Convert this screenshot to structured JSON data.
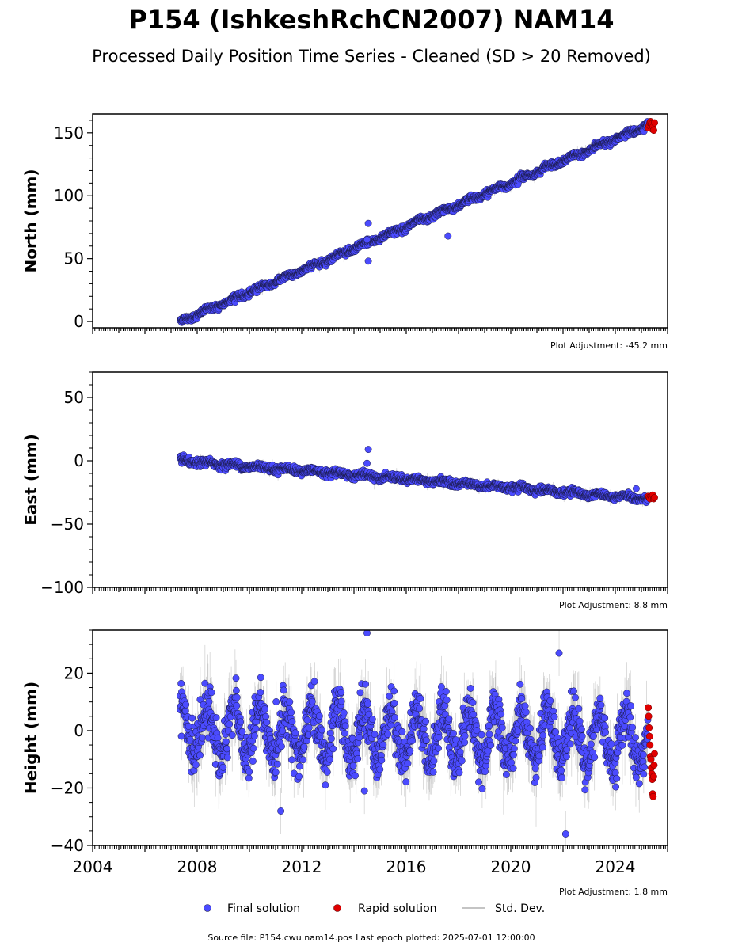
{
  "title": "P154 (IshkeshRchCN2007) NAM14",
  "subtitle": "Processed Daily Position Time Series - Cleaned (SD > 20 Removed)",
  "legend": {
    "final": "Final solution",
    "rapid": "Rapid solution",
    "std": "Std. Dev."
  },
  "footer": "Source file: P154.cwu.nam14.pos  Last epoch plotted: 2025-07-01 12:00:00",
  "colors": {
    "final": "#4b4bff",
    "final_edge": "#1a1a4a",
    "rapid": "#e00000",
    "std": "#b0b0b0"
  },
  "chart_data": [
    {
      "type": "scatter",
      "ylabel": "North (mm)",
      "adjustment": "Plot Adjustment: -45.2 mm",
      "xlim": [
        2004,
        2026
      ],
      "ylim": [
        -5,
        165
      ],
      "yticks": [
        0,
        50,
        100,
        150
      ],
      "yminor": 10,
      "xticks": [
        2004,
        2008,
        2012,
        2016,
        2020,
        2024
      ],
      "show_xticklabels": false,
      "final": {
        "start_year": 2007.35,
        "end_year": 2025.25,
        "trend_start": 0,
        "trend_end": 156,
        "annual_amplitude": 1.2,
        "noise": 1.2,
        "outliers": [
          [
            2014.55,
            78
          ],
          [
            2014.55,
            48
          ],
          [
            2014.5,
            65
          ],
          [
            2017.6,
            68
          ]
        ]
      },
      "rapid": {
        "start_year": 2025.26,
        "end_year": 2025.5,
        "values": [
          154,
          156,
          158,
          159,
          157,
          153,
          155,
          152,
          158
        ]
      }
    },
    {
      "type": "scatter",
      "ylabel": "East (mm)",
      "adjustment": "Plot Adjustment: 8.8 mm",
      "xlim": [
        2004,
        2026
      ],
      "ylim": [
        -100,
        70
      ],
      "yticks": [
        -100,
        -50,
        0,
        50
      ],
      "yminor": 10,
      "xticks": [
        2004,
        2008,
        2012,
        2016,
        2020,
        2024
      ],
      "show_xticklabels": false,
      "final": {
        "start_year": 2007.35,
        "end_year": 2025.25,
        "trend_start": 0,
        "trend_end": -30,
        "annual_amplitude": 1.2,
        "noise": 1.3,
        "outliers": [
          [
            2014.55,
            9
          ],
          [
            2014.5,
            -2
          ],
          [
            2024.8,
            -22
          ]
        ]
      },
      "rapid": {
        "start_year": 2025.26,
        "end_year": 2025.5,
        "values": [
          -28,
          -29,
          -30,
          -28,
          -29,
          -27,
          -30,
          -29
        ]
      }
    },
    {
      "type": "scatter",
      "ylabel": "Height (mm)",
      "adjustment": "Plot Adjustment: 1.8 mm",
      "xlim": [
        2004,
        2026
      ],
      "ylim": [
        -40,
        35
      ],
      "yticks": [
        -40,
        -20,
        0,
        20
      ],
      "yminor": 5,
      "xticks": [
        2004,
        2008,
        2012,
        2016,
        2020,
        2024
      ],
      "show_xticklabels": true,
      "final": {
        "start_year": 2007.35,
        "end_year": 2025.25,
        "trend_start": 0,
        "trend_end": -3,
        "annual_amplitude": 9,
        "noise": 4,
        "outliers": [
          [
            2014.5,
            34
          ],
          [
            2021.85,
            27
          ],
          [
            2022.1,
            -36
          ],
          [
            2011.2,
            -28
          ],
          [
            2014.4,
            -21
          ]
        ]
      },
      "rapid": {
        "start_year": 2025.26,
        "end_year": 2025.5,
        "values": [
          8,
          5,
          1,
          -2,
          -5,
          -9,
          -10,
          -13,
          -15,
          -17,
          -22,
          -23,
          -16,
          -12,
          -8
        ]
      }
    }
  ]
}
